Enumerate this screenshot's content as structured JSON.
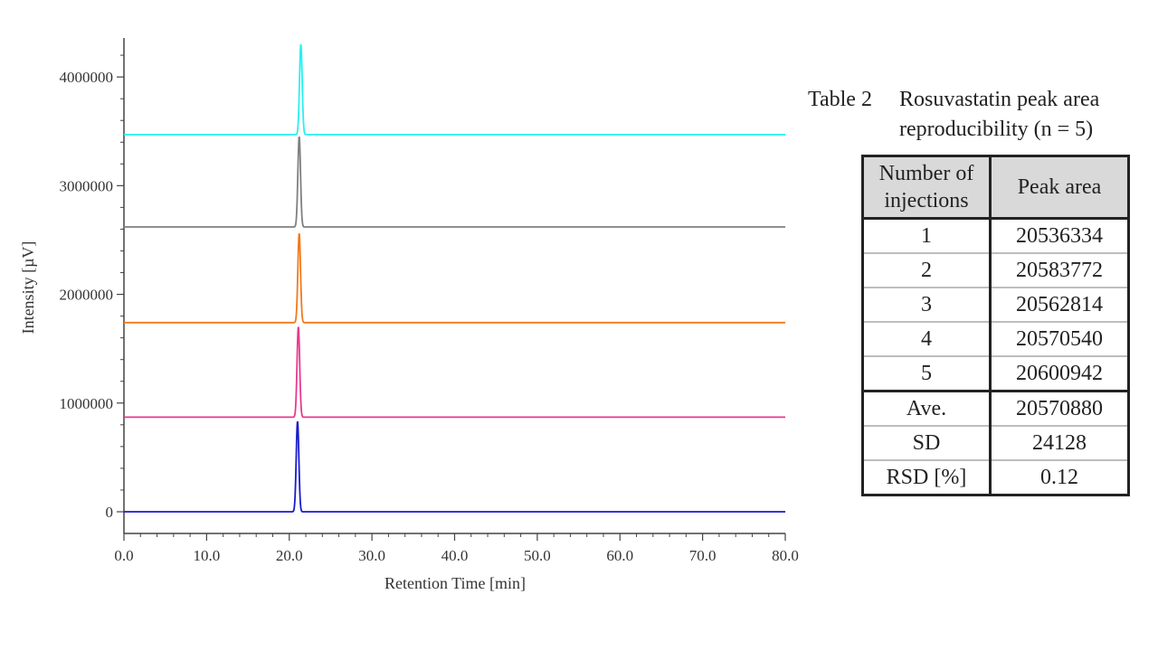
{
  "chart_data": {
    "type": "line",
    "xlabel": "Retention Time [min]",
    "ylabel": "Intensity [µV]",
    "xlim": [
      0,
      80
    ],
    "ylim": [
      -200000,
      4350000
    ],
    "x_ticks": [
      "0.0",
      "10.0",
      "20.0",
      "30.0",
      "40.0",
      "50.0",
      "60.0",
      "70.0",
      "80.0"
    ],
    "y_ticks": [
      "0",
      "1000000",
      "2000000",
      "3000000",
      "4000000"
    ],
    "grid": false,
    "series": [
      {
        "color": "#1a1acc",
        "baseline": 0,
        "peak_time": 21.0,
        "peak_height": 830000
      },
      {
        "color": "#e8398f",
        "baseline": 870000,
        "peak_time": 21.1,
        "peak_height": 830000
      },
      {
        "color": "#f07a1e",
        "baseline": 1740000,
        "peak_time": 21.2,
        "peak_height": 820000
      },
      {
        "color": "#808080",
        "baseline": 2620000,
        "peak_time": 21.2,
        "peak_height": 830000
      },
      {
        "color": "#29f0f0",
        "baseline": 3470000,
        "peak_time": 21.4,
        "peak_height": 830000
      }
    ]
  },
  "table": {
    "caption_label": "Table 2",
    "caption_text": "Rosuvastatin peak area reproducibility (n = 5)",
    "headers": [
      "Number of injections",
      "Peak area"
    ],
    "rows": [
      [
        "1",
        "20536334"
      ],
      [
        "2",
        "20583772"
      ],
      [
        "3",
        "20562814"
      ],
      [
        "4",
        "20570540"
      ],
      [
        "5",
        "20600942"
      ]
    ],
    "summary": [
      [
        "Ave.",
        "20570880"
      ],
      [
        "SD",
        "24128"
      ],
      [
        "RSD [%]",
        "0.12"
      ]
    ]
  }
}
